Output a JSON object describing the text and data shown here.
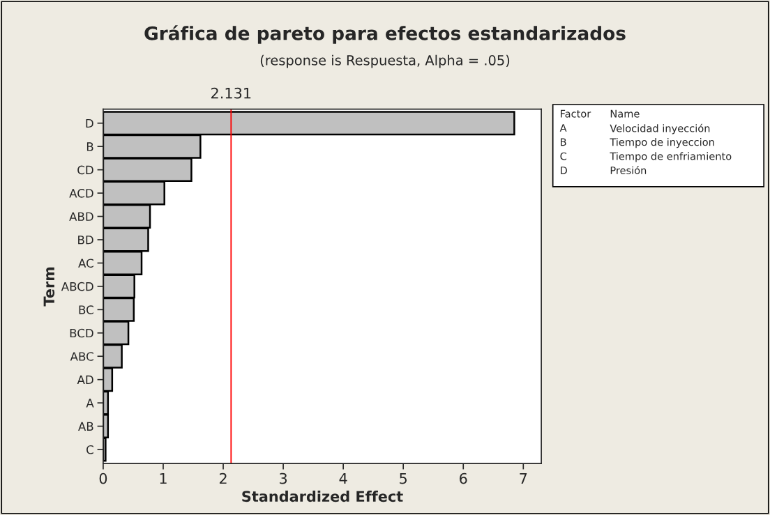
{
  "chart_data": {
    "type": "bar",
    "orientation": "horizontal",
    "title": "Gráfica de pareto para efectos estandarizados",
    "subtitle": "(response is Respuesta, Alpha = .05)",
    "xlabel": "Standardized Effect",
    "ylabel": "Term",
    "categories": [
      "D",
      "B",
      "CD",
      "ACD",
      "ABD",
      "BD",
      "AC",
      "ABCD",
      "BC",
      "BCD",
      "ABC",
      "AD",
      "A",
      "AB",
      "C"
    ],
    "values": [
      6.85,
      1.62,
      1.47,
      1.02,
      0.78,
      0.75,
      0.64,
      0.52,
      0.51,
      0.42,
      0.31,
      0.15,
      0.08,
      0.08,
      0.04
    ],
    "color": "#c0c0c0",
    "xlim": [
      0,
      7.3
    ],
    "xticks": [
      0,
      1,
      2,
      3,
      4,
      5,
      6,
      7
    ],
    "ref_lines": [
      {
        "axis": "x",
        "value": 2.131,
        "label": "2.131",
        "color": "#ff0000"
      }
    ],
    "annotations": [
      "Factor",
      "Name",
      "A",
      "Velocidad inyección",
      "B",
      "Tiempo de inyeccion",
      "C",
      "Tiempo de enfriamiento",
      "D",
      "Presión"
    ],
    "grid": false
  }
}
